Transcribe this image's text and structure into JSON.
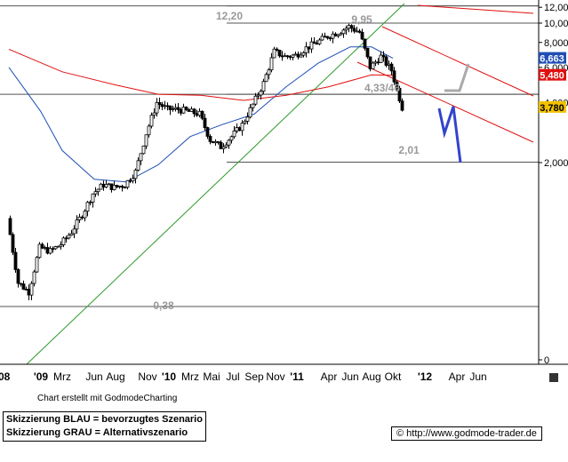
{
  "chart_data": {
    "type": "candlestick",
    "y_scale": "log",
    "ylim": [
      1.95,
      12.2
    ],
    "y_ticks": [
      "12,000",
      "10,000",
      "8,000",
      "6,000",
      "4,000",
      "2,000",
      "0"
    ],
    "x_ticks": [
      "08",
      "'09",
      "Mrz",
      "Jun",
      "Aug",
      "Nov",
      "'10",
      "Mrz",
      "Mai",
      "Jul",
      "Sep",
      "Nov",
      "'11",
      "Apr",
      "Jun",
      "Aug",
      "Okt",
      "'12",
      "Apr",
      "Jun"
    ],
    "price_labels": [
      {
        "label": "6,663",
        "value": 6.663,
        "color": "#1f4fb5"
      },
      {
        "label": "5,480",
        "value": 5.48,
        "color": "#e01010"
      },
      {
        "label": "3,780",
        "value": 3.78,
        "color": "#f2c200"
      }
    ],
    "levels": [
      {
        "label": "12,20",
        "value": 12.2
      },
      {
        "label": "9,95",
        "value": 9.95
      },
      {
        "label": "4,33/46",
        "value": 4.4
      },
      {
        "label": "2,01",
        "value": 2.01
      },
      {
        "label": "0,38",
        "value": 0.38
      }
    ],
    "price_series": {
      "x": [
        "2008-10",
        "2008-11",
        "2008-12",
        "2009-01",
        "2009-02",
        "2009-03",
        "2009-04",
        "2009-05",
        "2009-06",
        "2009-07",
        "2009-08",
        "2009-09",
        "2009-10",
        "2009-11",
        "2009-12",
        "2010-01",
        "2010-02",
        "2010-03",
        "2010-04",
        "2010-05",
        "2010-06",
        "2010-07",
        "2010-08",
        "2010-09",
        "2010-10",
        "2010-11",
        "2010-12",
        "2011-01",
        "2011-02",
        "2011-03",
        "2011-04",
        "2011-05",
        "2011-06",
        "2011-07",
        "2011-08",
        "2011-09",
        "2011-10",
        "2011-11"
      ],
      "close": [
        1.05,
        0.5,
        0.45,
        0.75,
        0.72,
        0.78,
        0.9,
        1.1,
        1.4,
        1.55,
        1.5,
        1.55,
        1.8,
        2.8,
        4.0,
        3.7,
        3.7,
        3.6,
        3.5,
        2.6,
        2.4,
        2.7,
        3.1,
        3.9,
        5.0,
        7.2,
        6.8,
        6.9,
        7.5,
        8.0,
        8.6,
        9.0,
        9.6,
        9.0,
        6.0,
        6.8,
        5.8,
        3.78
      ]
    },
    "moving_averages": [
      {
        "color": "#1f4fb5",
        "last": 6.663
      },
      {
        "color": "#e01010",
        "last": 5.48
      }
    ],
    "scenarios": [
      {
        "color": "#3344cc",
        "points": [
          [
            "2011-11",
            3.78
          ],
          [
            "2011-12",
            2.6
          ],
          [
            "2011-12",
            3.5
          ],
          [
            "2012-01",
            2.01
          ]
        ]
      },
      {
        "color": "#aaaaaa",
        "points": [
          [
            "2011-12",
            4.6
          ],
          [
            "2012-01",
            4.6
          ],
          [
            "2012-01",
            6.3
          ]
        ]
      }
    ]
  },
  "footer": {
    "credit": "Chart erstellt mit GodmodeCharting",
    "legend_line1": "Skizzierung BLAU = bevorzugtes Szenario",
    "legend_line2": "Skizzierung GRAU = Alternativszenario",
    "url": "http://www.godmode-trader.de"
  },
  "icons": {
    "copyright": "copyright-icon"
  }
}
